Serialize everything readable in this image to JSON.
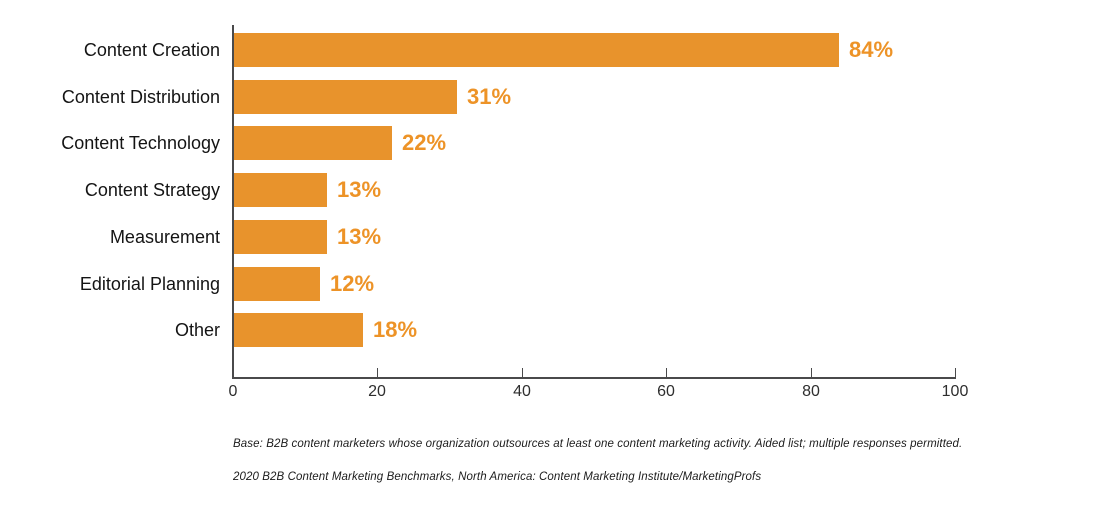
{
  "chart_data": {
    "type": "bar",
    "orientation": "horizontal",
    "title": "",
    "categories": [
      "Content Creation",
      "Content Distribution",
      "Content Technology",
      "Content Strategy",
      "Measurement",
      "Editorial Planning",
      "Other"
    ],
    "values": [
      84,
      31,
      22,
      13,
      13,
      12,
      18
    ],
    "value_labels": [
      "84%",
      "31%",
      "22%",
      "13%",
      "13%",
      "12%",
      "18%"
    ],
    "xlabel": "",
    "ylabel": "",
    "xlim": [
      0,
      100
    ],
    "x_ticks": [
      "0",
      "20",
      "40",
      "60",
      "80",
      "100"
    ],
    "grid": "off",
    "legend": "none",
    "bar_color": "#E8932C",
    "value_label_color": "#ED9327",
    "axis_color": "#4A4A4B"
  },
  "footnotes": {
    "base": "Base: B2B content marketers whose organization outsources at least one content marketing activity. Aided list; multiple responses permitted.",
    "source": "2020 B2B Content Marketing Benchmarks, North America: Content Marketing Institute/MarketingProfs"
  }
}
